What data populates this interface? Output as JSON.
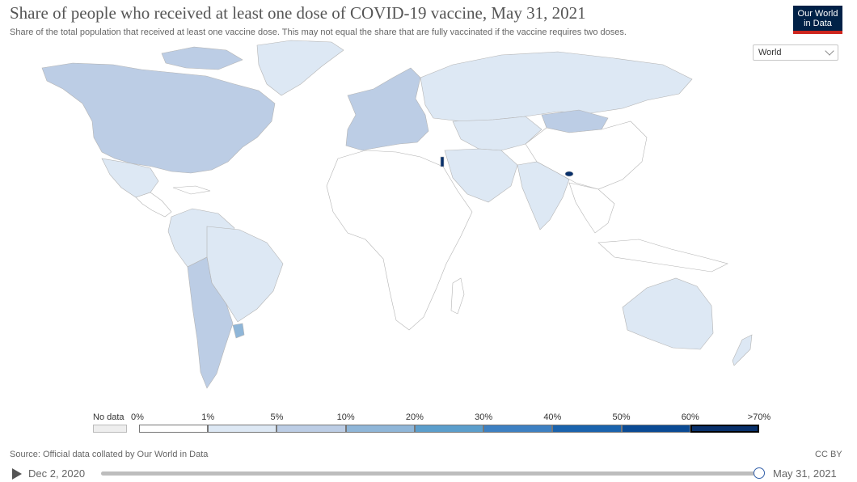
{
  "header": {
    "title": "Share of people who received at least one dose of COVID-19 vaccine, May 31, 2021",
    "subtitle": "Share of the total population that received at least one vaccine dose. This may not equal the share that are fully vaccinated if the vaccine requires two doses.",
    "logo_line1": "Our World",
    "logo_line2": "in Data",
    "entity_select": "World"
  },
  "colors": {
    "bins": [
      "#ffffff",
      "#dde8f4",
      "#bccde5",
      "#8fb6d8",
      "#5b9ecc",
      "#3d80c2",
      "#1a63ad",
      "#0a4a94",
      "#08306b"
    ],
    "no_data": "#eeeeee",
    "border": "#b4b4b4",
    "brand_navy": "#002147",
    "brand_red": "#ce261e",
    "slider_handle": "#3360a9"
  },
  "map_data": {
    "metric": "Share of people who received at least one dose of COVID-19 vaccine",
    "unit": "%",
    "date": "May 31, 2021",
    "legend": {
      "no_data_label": "No data",
      "bin_edges": [
        "0%",
        "1%",
        "5%",
        "10%",
        "20%",
        "30%",
        "40%",
        "50%",
        "60%",
        ">70%"
      ]
    },
    "regions": [
      {
        "name": "North America",
        "bin": 2
      },
      {
        "name": "Greenland",
        "bin": 1
      },
      {
        "name": "Mexico",
        "bin": 1
      },
      {
        "name": "Central America",
        "bin": 0
      },
      {
        "name": "South America (north)",
        "bin": 1
      },
      {
        "name": "Brazil",
        "bin": 1
      },
      {
        "name": "Southern Cone",
        "bin": 2
      },
      {
        "name": "Uruguay",
        "bin": 3
      },
      {
        "name": "Europe",
        "bin": 2
      },
      {
        "name": "Russia",
        "bin": 1
      },
      {
        "name": "Central Asia",
        "bin": 1
      },
      {
        "name": "Mongolia",
        "bin": 2
      },
      {
        "name": "China",
        "bin": 0
      },
      {
        "name": "India",
        "bin": 1
      },
      {
        "name": "Middle East",
        "bin": 1
      },
      {
        "name": "Israel",
        "bin": 8
      },
      {
        "name": "Bhutan",
        "bin": 8
      },
      {
        "name": "Africa",
        "bin": 0
      },
      {
        "name": "Madagascar",
        "bin": 0
      },
      {
        "name": "Southeast Asia",
        "bin": 0
      },
      {
        "name": "Australia",
        "bin": 1
      },
      {
        "name": "New Zealand",
        "bin": 1
      }
    ]
  },
  "footer": {
    "source": "Source: Official data collated by Our World in Data",
    "license": "CC BY"
  },
  "timeline": {
    "start_label": "Dec 2, 2020",
    "end_label": "May 31, 2021",
    "position": 1.0
  }
}
